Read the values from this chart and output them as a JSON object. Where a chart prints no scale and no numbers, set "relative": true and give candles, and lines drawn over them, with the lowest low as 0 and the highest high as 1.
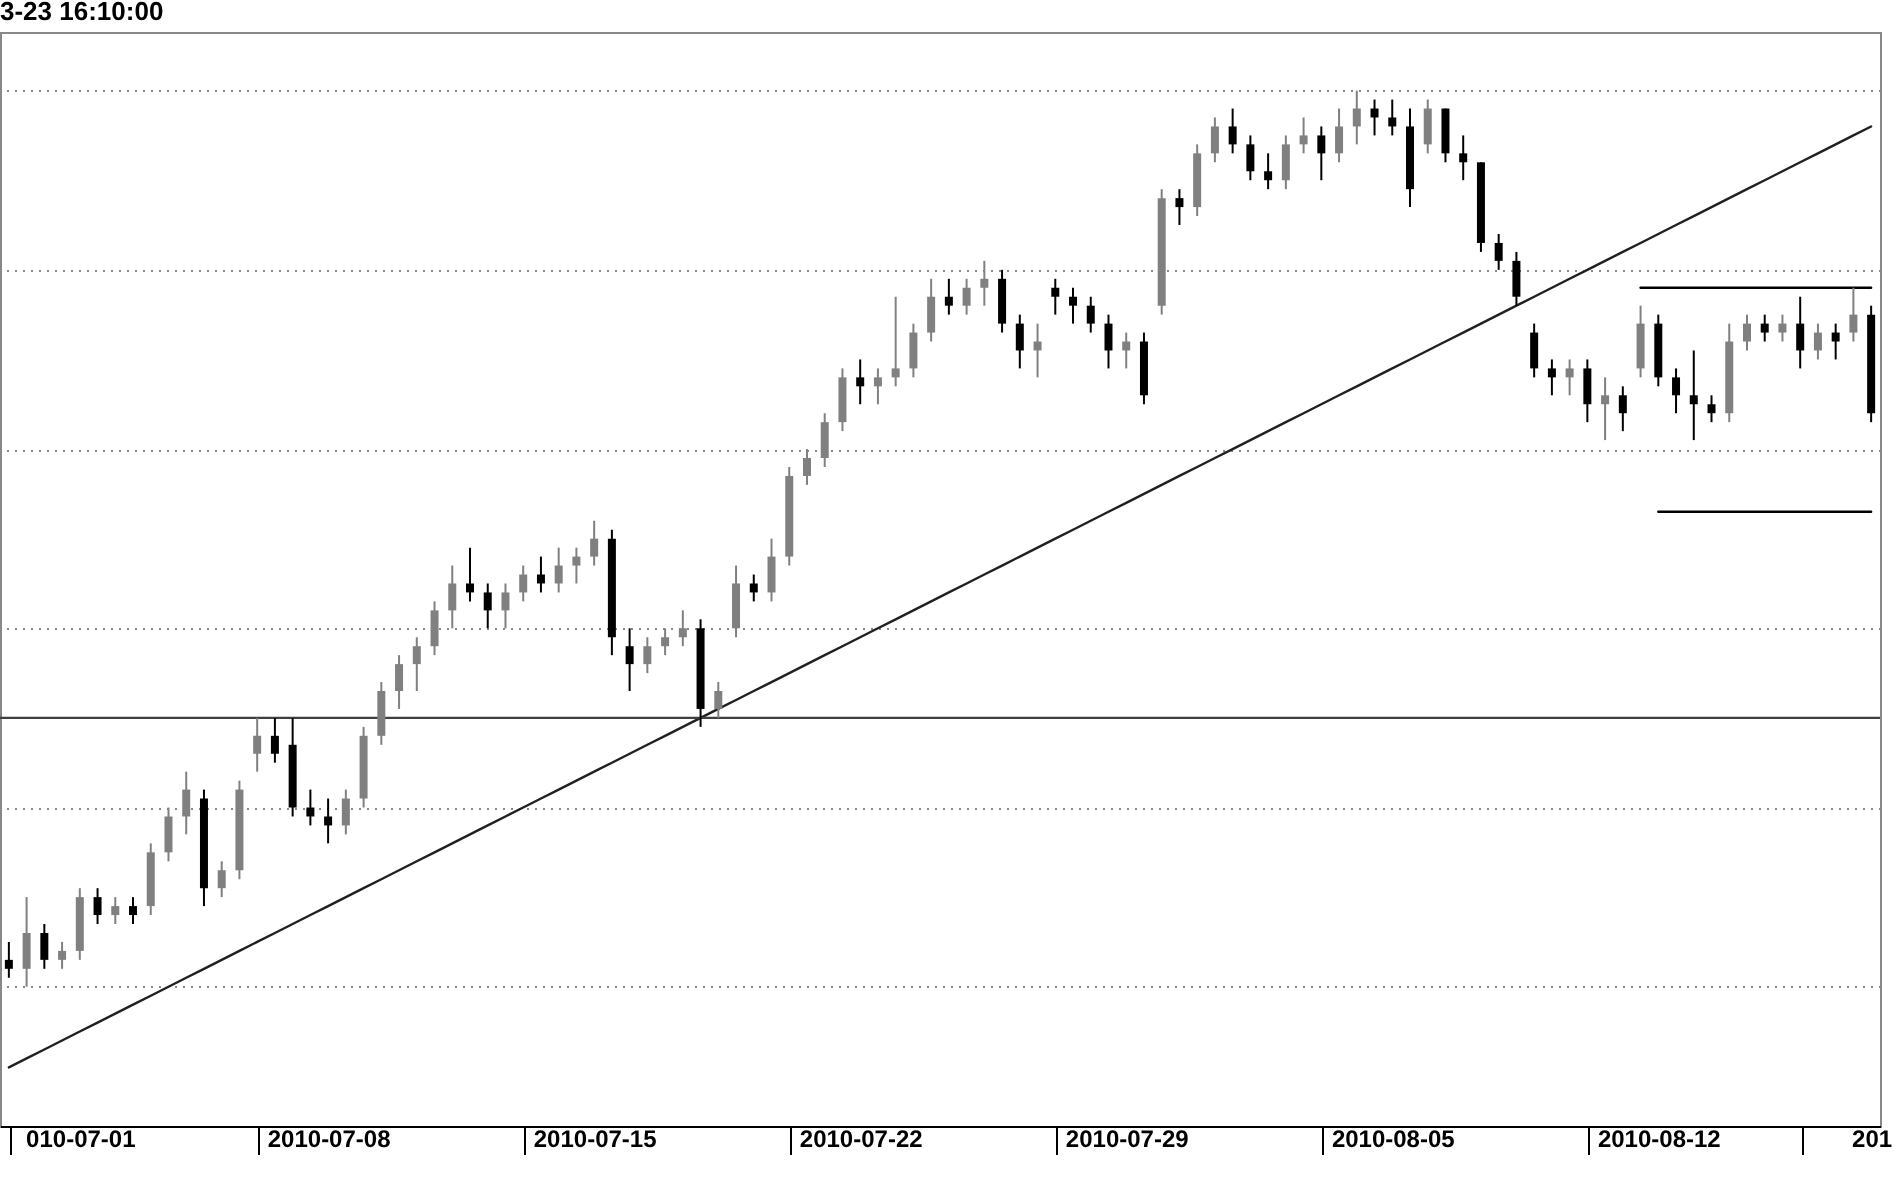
{
  "chart_data": {
    "type": "candlestick",
    "title": "3-23 16:10:00",
    "relative": true,
    "categories": [
      null,
      null,
      null,
      null,
      "010-07-01",
      null,
      null,
      null,
      null,
      null,
      null,
      null,
      null,
      null,
      null,
      null,
      null,
      null,
      "2010-07-08",
      null,
      null,
      null,
      null,
      null,
      null,
      null,
      null,
      null,
      null,
      null,
      null,
      null,
      null,
      "2010-07-15",
      null,
      null,
      null,
      null,
      null,
      null,
      null,
      null,
      null,
      null,
      null,
      null,
      null,
      null,
      "2010-07-22",
      null,
      null,
      null,
      null,
      null,
      null,
      null,
      null,
      null,
      null,
      null,
      null,
      null,
      null,
      "2010-07-29",
      null,
      null,
      null,
      null,
      null,
      null,
      null,
      null,
      null,
      null,
      null,
      null,
      null,
      null,
      "2010-08-05",
      null,
      null,
      null,
      null,
      null,
      null,
      null,
      null,
      null,
      null,
      null,
      null,
      null,
      null,
      "2010-08-12",
      null,
      null,
      null,
      null,
      null,
      null,
      null,
      null,
      null,
      null,
      null,
      "201"
    ],
    "ohlc": [
      [
        0.03,
        0.05,
        0.01,
        0.02
      ],
      [
        0.02,
        0.1,
        0,
        0.06
      ],
      [
        0.06,
        0.07,
        0.02,
        0.03
      ],
      [
        0.03,
        0.05,
        0.02,
        0.04
      ],
      [
        0.04,
        0.11,
        0.03,
        0.1
      ],
      [
        0.1,
        0.11,
        0.07,
        0.08
      ],
      [
        0.08,
        0.1,
        0.07,
        0.09
      ],
      [
        0.09,
        0.1,
        0.07,
        0.08
      ],
      [
        0.09,
        0.16,
        0.08,
        0.15
      ],
      [
        0.15,
        0.2,
        0.14,
        0.19
      ],
      [
        0.19,
        0.24,
        0.17,
        0.22
      ],
      [
        0.21,
        0.22,
        0.09,
        0.11
      ],
      [
        0.11,
        0.14,
        0.1,
        0.13
      ],
      [
        0.13,
        0.23,
        0.12,
        0.22
      ],
      [
        0.26,
        0.3,
        0.24,
        0.28
      ],
      [
        0.28,
        0.3,
        0.25,
        0.26
      ],
      [
        0.27,
        0.3,
        0.19,
        0.2
      ],
      [
        0.2,
        0.22,
        0.18,
        0.19
      ],
      [
        0.19,
        0.21,
        0.16,
        0.18
      ],
      [
        0.18,
        0.22,
        0.17,
        0.21
      ],
      [
        0.21,
        0.29,
        0.2,
        0.28
      ],
      [
        0.28,
        0.34,
        0.27,
        0.33
      ],
      [
        0.33,
        0.37,
        0.31,
        0.36
      ],
      [
        0.36,
        0.39,
        0.33,
        0.38
      ],
      [
        0.38,
        0.43,
        0.37,
        0.42
      ],
      [
        0.42,
        0.47,
        0.4,
        0.45
      ],
      [
        0.45,
        0.49,
        0.43,
        0.44
      ],
      [
        0.44,
        0.45,
        0.4,
        0.42
      ],
      [
        0.42,
        0.45,
        0.4,
        0.44
      ],
      [
        0.44,
        0.47,
        0.43,
        0.46
      ],
      [
        0.46,
        0.48,
        0.44,
        0.45
      ],
      [
        0.45,
        0.49,
        0.44,
        0.47
      ],
      [
        0.47,
        0.49,
        0.45,
        0.48
      ],
      [
        0.48,
        0.52,
        0.47,
        0.5
      ],
      [
        0.5,
        0.51,
        0.37,
        0.39
      ],
      [
        0.38,
        0.4,
        0.33,
        0.36
      ],
      [
        0.36,
        0.39,
        0.35,
        0.38
      ],
      [
        0.38,
        0.4,
        0.37,
        0.39
      ],
      [
        0.39,
        0.42,
        0.38,
        0.4
      ],
      [
        0.4,
        0.41,
        0.29,
        0.31
      ],
      [
        0.31,
        0.34,
        0.3,
        0.33
      ],
      [
        0.4,
        0.47,
        0.39,
        0.45
      ],
      [
        0.45,
        0.46,
        0.43,
        0.44
      ],
      [
        0.44,
        0.5,
        0.43,
        0.48
      ],
      [
        0.48,
        0.58,
        0.47,
        0.57
      ],
      [
        0.57,
        0.6,
        0.56,
        0.59
      ],
      [
        0.59,
        0.64,
        0.58,
        0.63
      ],
      [
        0.63,
        0.69,
        0.62,
        0.68
      ],
      [
        0.68,
        0.7,
        0.65,
        0.67
      ],
      [
        0.67,
        0.69,
        0.65,
        0.68
      ],
      [
        0.68,
        0.77,
        0.67,
        0.69
      ],
      [
        0.69,
        0.74,
        0.68,
        0.73
      ],
      [
        0.73,
        0.79,
        0.72,
        0.77
      ],
      [
        0.77,
        0.79,
        0.75,
        0.76
      ],
      [
        0.76,
        0.79,
        0.75,
        0.78
      ],
      [
        0.78,
        0.81,
        0.76,
        0.79
      ],
      [
        0.79,
        0.8,
        0.73,
        0.74
      ],
      [
        0.74,
        0.75,
        0.69,
        0.71
      ],
      [
        0.71,
        0.74,
        0.68,
        0.72
      ],
      [
        0.78,
        0.79,
        0.75,
        0.77
      ],
      [
        0.77,
        0.78,
        0.74,
        0.76
      ],
      [
        0.76,
        0.77,
        0.73,
        0.74
      ],
      [
        0.74,
        0.75,
        0.69,
        0.71
      ],
      [
        0.71,
        0.73,
        0.69,
        0.72
      ],
      [
        0.72,
        0.73,
        0.65,
        0.66
      ],
      [
        0.76,
        0.89,
        0.75,
        0.88
      ],
      [
        0.88,
        0.89,
        0.85,
        0.87
      ],
      [
        0.87,
        0.94,
        0.86,
        0.93
      ],
      [
        0.93,
        0.97,
        0.92,
        0.96
      ],
      [
        0.96,
        0.98,
        0.93,
        0.94
      ],
      [
        0.94,
        0.95,
        0.9,
        0.91
      ],
      [
        0.91,
        0.93,
        0.89,
        0.9
      ],
      [
        0.9,
        0.95,
        0.89,
        0.94
      ],
      [
        0.94,
        0.97,
        0.93,
        0.95
      ],
      [
        0.95,
        0.96,
        0.9,
        0.93
      ],
      [
        0.93,
        0.98,
        0.92,
        0.96
      ],
      [
        0.96,
        1,
        0.94,
        0.98
      ],
      [
        0.98,
        0.99,
        0.95,
        0.97
      ],
      [
        0.97,
        0.99,
        0.95,
        0.96
      ],
      [
        0.96,
        0.98,
        0.87,
        0.89
      ],
      [
        0.94,
        0.99,
        0.93,
        0.98
      ],
      [
        0.98,
        0.98,
        0.92,
        0.93
      ],
      [
        0.93,
        0.95,
        0.9,
        0.92
      ],
      [
        0.92,
        0.92,
        0.82,
        0.83
      ],
      [
        0.83,
        0.84,
        0.8,
        0.81
      ],
      [
        0.81,
        0.82,
        0.76,
        0.77
      ],
      [
        0.73,
        0.74,
        0.68,
        0.69
      ],
      [
        0.69,
        0.7,
        0.66,
        0.68
      ],
      [
        0.68,
        0.7,
        0.66,
        0.69
      ],
      [
        0.69,
        0.7,
        0.63,
        0.65
      ],
      [
        0.65,
        0.68,
        0.61,
        0.66
      ],
      [
        0.66,
        0.67,
        0.62,
        0.64
      ],
      [
        0.69,
        0.76,
        0.68,
        0.74
      ],
      [
        0.74,
        0.75,
        0.67,
        0.68
      ],
      [
        0.68,
        0.69,
        0.64,
        0.66
      ],
      [
        0.66,
        0.71,
        0.61,
        0.65
      ],
      [
        0.65,
        0.66,
        0.63,
        0.64
      ],
      [
        0.64,
        0.74,
        0.63,
        0.72
      ],
      [
        0.72,
        0.75,
        0.71,
        0.74
      ],
      [
        0.74,
        0.75,
        0.72,
        0.73
      ],
      [
        0.73,
        0.75,
        0.72,
        0.74
      ],
      [
        0.74,
        0.77,
        0.69,
        0.71
      ],
      [
        0.71,
        0.74,
        0.7,
        0.73
      ],
      [
        0.73,
        0.74,
        0.7,
        0.72
      ],
      [
        0.73,
        0.78,
        0.72,
        0.75
      ],
      [
        0.75,
        0.76,
        0.63,
        0.64
      ]
    ],
    "colors": [
      "#000000",
      "#808080",
      "#000000",
      "#808080",
      "#808080",
      "#000000",
      "#808080",
      "#000000",
      "#808080",
      "#808080",
      "#808080",
      "#000000",
      "#808080",
      "#808080",
      "#808080",
      "#000000",
      "#000000",
      "#000000",
      "#000000",
      "#808080",
      "#808080",
      "#808080",
      "#808080",
      "#808080",
      "#808080",
      "#808080",
      "#000000",
      "#000000",
      "#808080",
      "#808080",
      "#000000",
      "#808080",
      "#808080",
      "#808080",
      "#000000",
      "#000000",
      "#808080",
      "#808080",
      "#808080",
      "#000000",
      "#808080",
      "#808080",
      "#000000",
      "#808080",
      "#808080",
      "#808080",
      "#808080",
      "#808080",
      "#000000",
      "#808080",
      "#808080",
      "#808080",
      "#808080",
      "#000000",
      "#808080",
      "#808080",
      "#000000",
      "#000000",
      "#808080",
      "#000000",
      "#000000",
      "#000000",
      "#000000",
      "#808080",
      "#000000",
      "#808080",
      "#000000",
      "#808080",
      "#808080",
      "#000000",
      "#000000",
      "#000000",
      "#808080",
      "#808080",
      "#000000",
      "#808080",
      "#808080",
      "#000000",
      "#000000",
      "#000000",
      "#808080",
      "#000000",
      "#000000",
      "#000000",
      "#000000",
      "#000000",
      "#000000",
      "#000000",
      "#808080",
      "#000000",
      "#808080",
      "#000000",
      "#808080",
      "#000000",
      "#000000",
      "#000000",
      "#000000",
      "#808080",
      "#808080",
      "#000000",
      "#808080",
      "#000000",
      "#808080",
      "#000000",
      "#808080",
      "#000000"
    ],
    "grid": "y",
    "series": [
      {
        "type": "line",
        "color": "#202020",
        "values": [
          -0.09,
          -0.08,
          -0.07,
          -0.06,
          -0.05,
          -0.04,
          -0.03,
          -0.02,
          -0.01,
          0,
          0.01,
          0.02,
          0.03,
          0.04,
          0.05,
          0.06,
          0.07,
          0.08,
          0.09,
          0.1,
          0.11,
          0.12,
          0.13,
          0.14,
          0.15,
          0.16,
          0.17,
          0.18,
          0.19,
          0.2,
          0.21,
          0.22,
          0.23,
          0.24,
          0.25,
          0.26,
          0.27,
          0.28,
          0.29,
          0.3,
          0.31,
          0.32,
          0.33,
          0.34,
          0.35,
          0.36,
          0.37,
          0.38,
          0.39,
          0.4,
          0.41,
          0.42,
          0.43,
          0.44,
          0.45,
          0.46,
          0.47,
          0.48,
          0.49,
          0.5,
          0.51,
          0.52,
          0.53,
          0.54,
          0.55,
          0.56,
          0.57,
          0.58,
          0.59,
          0.6,
          0.61,
          0.62,
          0.63,
          0.64,
          0.65,
          0.66,
          0.67,
          0.68,
          0.69,
          0.7,
          0.71,
          0.72,
          0.73,
          0.74,
          0.75,
          0.76,
          0.77,
          0.78,
          0.79,
          0.8,
          0.81,
          0.82,
          0.83,
          0.84,
          0.85,
          0.86,
          0.87,
          0.88,
          0.89,
          0.9,
          0.91,
          0.92,
          0.93,
          0.94,
          0.95,
          0.96
        ]
      },
      {
        "type": "line",
        "color": "#000000",
        "values": [
          null,
          null,
          null,
          null,
          null,
          null,
          null,
          null,
          null,
          null,
          null,
          null,
          null,
          null,
          null,
          null,
          null,
          null,
          null,
          null,
          null,
          null,
          null,
          null,
          null,
          null,
          null,
          null,
          null,
          null,
          null,
          null,
          null,
          null,
          null,
          null,
          null,
          null,
          null,
          null,
          null,
          null,
          null,
          null,
          null,
          null,
          null,
          null,
          null,
          null,
          null,
          null,
          null,
          null,
          null,
          null,
          null,
          null,
          null,
          null,
          null,
          null,
          null,
          null,
          null,
          null,
          null,
          null,
          null,
          null,
          null,
          null,
          null,
          null,
          null,
          null,
          null,
          null,
          null,
          null,
          null,
          null,
          null,
          null,
          null,
          null,
          null,
          null,
          null,
          null,
          null,
          null,
          0.78,
          0.78,
          0.78,
          0.78,
          0.78,
          0.78,
          0.78,
          0.78,
          0.78,
          0.78,
          0.78,
          0.78,
          0.78,
          0.78
        ]
      },
      {
        "type": "line",
        "color": "#000000",
        "values": [
          null,
          null,
          null,
          null,
          null,
          null,
          null,
          null,
          null,
          null,
          null,
          null,
          null,
          null,
          null,
          null,
          null,
          null,
          null,
          null,
          null,
          null,
          null,
          null,
          null,
          null,
          null,
          null,
          null,
          null,
          null,
          null,
          null,
          null,
          null,
          null,
          null,
          null,
          null,
          null,
          null,
          null,
          null,
          null,
          null,
          null,
          null,
          null,
          null,
          null,
          null,
          null,
          null,
          null,
          null,
          null,
          null,
          null,
          null,
          null,
          null,
          null,
          null,
          null,
          null,
          null,
          null,
          null,
          null,
          null,
          null,
          null,
          null,
          null,
          null,
          null,
          null,
          null,
          null,
          null,
          null,
          null,
          null,
          null,
          null,
          null,
          null,
          null,
          null,
          null,
          null,
          null,
          null,
          0.53,
          0.53,
          0.53,
          0.53,
          0.53,
          0.53,
          0.53,
          0.53,
          0.53,
          0.53,
          0.53,
          0.53,
          0.53
        ]
      }
    ],
    "ref_lines": [
      {
        "axis": "y",
        "value": 0.3,
        "color": "#404040"
      }
    ]
  }
}
